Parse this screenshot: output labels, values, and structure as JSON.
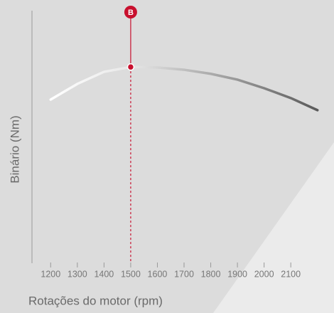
{
  "chart_data": {
    "type": "line",
    "x_label": "Rotações do motor (rpm)",
    "y_label": "Binário (Nm)",
    "x": [
      1200,
      1300,
      1400,
      1500,
      1600,
      1700,
      1800,
      1900,
      2000,
      2100,
      2200
    ],
    "series": [
      {
        "color": "#5a5a5a",
        "values": [
          64.8,
          71,
          75.8,
          77.7,
          77.5,
          76.6,
          75,
          72.7,
          69.3,
          65.4,
          60.6
        ]
      }
    ],
    "xlim": [
      1130,
      2230
    ],
    "ylim": [
      0,
      100
    ],
    "xticks": [
      1200,
      1300,
      1400,
      1500,
      1600,
      1700,
      1800,
      1900,
      2000,
      2100
    ],
    "annotation": {
      "label": "B",
      "x": 1500,
      "color": "#c8102e"
    }
  }
}
